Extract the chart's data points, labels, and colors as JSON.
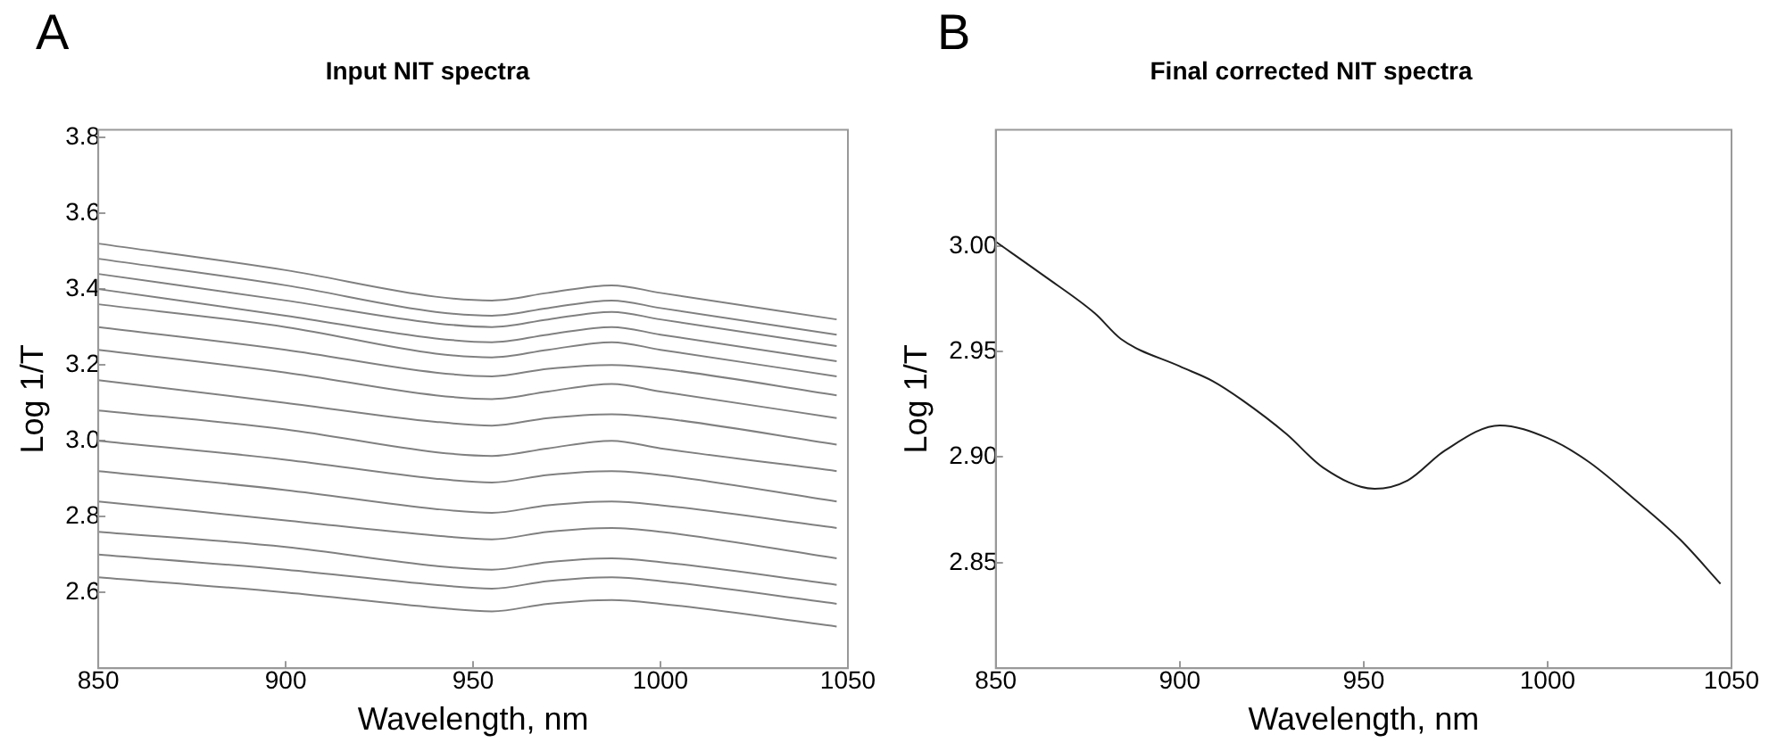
{
  "chart_data": [
    {
      "type": "line",
      "title": "Input NIT spectra",
      "xlabel": "Wavelength, nm",
      "ylabel": "Log 1/T",
      "annotations": [
        "A"
      ],
      "x": [
        850,
        900,
        940,
        955,
        970,
        987,
        1000,
        1047
      ],
      "xlim": [
        850,
        1050
      ],
      "xticks": [
        850,
        900,
        950,
        1000,
        1050
      ],
      "ylim": [
        2.4,
        3.82
      ],
      "yticks": [
        2.6,
        2.8,
        {
          "value": 3.0,
          "label": "3.0"
        },
        3.2,
        3.4,
        3.6,
        3.8
      ],
      "grid": false,
      "legend": false,
      "marker": "none",
      "line_style": "solid",
      "series": [
        {
          "color": "#808080",
          "values": [
            3.52,
            3.45,
            3.38,
            3.37,
            3.39,
            3.41,
            3.39,
            3.32
          ]
        },
        {
          "color": "#808080",
          "values": [
            3.48,
            3.41,
            3.34,
            3.33,
            3.35,
            3.37,
            3.35,
            3.28
          ]
        },
        {
          "color": "#808080",
          "values": [
            3.44,
            3.37,
            3.31,
            3.3,
            3.32,
            3.34,
            3.32,
            3.25
          ]
        },
        {
          "color": "#808080",
          "values": [
            3.4,
            3.33,
            3.27,
            3.26,
            3.28,
            3.3,
            3.28,
            3.21
          ]
        },
        {
          "color": "#808080",
          "values": [
            3.36,
            3.3,
            3.23,
            3.22,
            3.24,
            3.26,
            3.24,
            3.17
          ]
        },
        {
          "color": "#808080",
          "values": [
            3.3,
            3.24,
            3.18,
            3.17,
            3.19,
            3.2,
            3.19,
            3.12
          ]
        },
        {
          "color": "#808080",
          "values": [
            3.24,
            3.18,
            3.12,
            3.11,
            3.13,
            3.15,
            3.13,
            3.06
          ]
        },
        {
          "color": "#808080",
          "values": [
            3.16,
            3.1,
            3.05,
            3.04,
            3.06,
            3.07,
            3.06,
            2.99
          ]
        },
        {
          "color": "#808080",
          "values": [
            3.08,
            3.03,
            2.97,
            2.96,
            2.98,
            3.0,
            2.98,
            2.92
          ]
        },
        {
          "color": "#808080",
          "values": [
            3.0,
            2.95,
            2.9,
            2.89,
            2.91,
            2.92,
            2.91,
            2.84
          ]
        },
        {
          "color": "#808080",
          "values": [
            2.92,
            2.87,
            2.82,
            2.81,
            2.83,
            2.84,
            2.83,
            2.77
          ]
        },
        {
          "color": "#808080",
          "values": [
            2.84,
            2.79,
            2.75,
            2.74,
            2.76,
            2.77,
            2.76,
            2.69
          ]
        },
        {
          "color": "#808080",
          "values": [
            2.76,
            2.72,
            2.67,
            2.66,
            2.68,
            2.69,
            2.68,
            2.62
          ]
        },
        {
          "color": "#808080",
          "values": [
            2.7,
            2.66,
            2.62,
            2.61,
            2.63,
            2.64,
            2.63,
            2.57
          ]
        },
        {
          "color": "#808080",
          "values": [
            2.64,
            2.6,
            2.56,
            2.55,
            2.57,
            2.58,
            2.57,
            2.51
          ]
        }
      ]
    },
    {
      "type": "line",
      "title": "Final corrected NIT spectra",
      "xlabel": "Wavelength, nm",
      "ylabel": "Log 1/T",
      "annotations": [
        "B"
      ],
      "x": [
        850,
        863,
        877,
        884,
        900,
        909,
        917,
        929,
        939,
        953,
        962,
        972,
        987,
        1000,
        1011,
        1023,
        1036,
        1047
      ],
      "xlim": [
        850,
        1050
      ],
      "xticks": [
        850,
        900,
        950,
        1000,
        1050
      ],
      "ylim": [
        2.8,
        3.055
      ],
      "yticks": [
        {
          "value": 2.85,
          "label": "2.85"
        },
        {
          "value": 2.9,
          "label": "2.90"
        },
        {
          "value": 2.95,
          "label": "2.95"
        },
        {
          "value": 3.0,
          "label": "3.00"
        }
      ],
      "grid": false,
      "legend": false,
      "marker": "none",
      "line_style": "solid",
      "series": [
        {
          "color": "#202020",
          "values": [
            3.002,
            2.986,
            2.968,
            2.956,
            2.943,
            2.936,
            2.927,
            2.911,
            2.895,
            2.885,
            2.889,
            2.903,
            2.915,
            2.909,
            2.898,
            2.881,
            2.861,
            2.84
          ]
        }
      ]
    }
  ]
}
